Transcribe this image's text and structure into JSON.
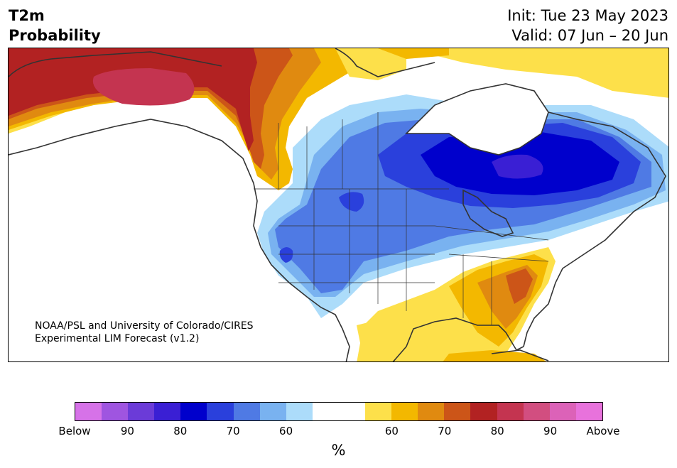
{
  "header": {
    "variable": "T2m",
    "product": "Probability",
    "init": "Init: Tue 23 May 2023",
    "valid": "Valid: 07 Jun – 20 Jun"
  },
  "credit": {
    "line1": "NOAA/PSL and University of Colorado/CIRES",
    "line2": "Experimental LIM Forecast (v1.2)"
  },
  "colorbar": {
    "colors": [
      "#d672e8",
      "#9f55e0",
      "#6b3bd8",
      "#3a1fd4",
      "#0000cc",
      "#2a40dc",
      "#4f7ae4",
      "#79b2f0",
      "#acdcfa",
      "#ffffff",
      "#ffffff",
      "#fde04a",
      "#f3b800",
      "#e08a10",
      "#cc5518",
      "#b22222",
      "#c43450",
      "#d24e80",
      "#dc62b8",
      "#e872dc"
    ],
    "tick_labels": [
      "Below",
      "90",
      "80",
      "70",
      "60",
      "60",
      "70",
      "80",
      "90",
      "Above"
    ],
    "unit": "%"
  },
  "map": {
    "region": "North America",
    "colors": {
      "above_80": "#b22222",
      "above_85": "#c43450",
      "above_75": "#cc5518",
      "above_70": "#e08a10",
      "above_65": "#f3b800",
      "above_60": "#fde04a",
      "below_60": "#acdcfa",
      "below_65": "#79b2f0",
      "below_70": "#4f7ae4",
      "below_75": "#2a40dc",
      "below_80": "#0000cc",
      "below_85": "#3a1fd4",
      "land_outline": "#333333"
    }
  }
}
